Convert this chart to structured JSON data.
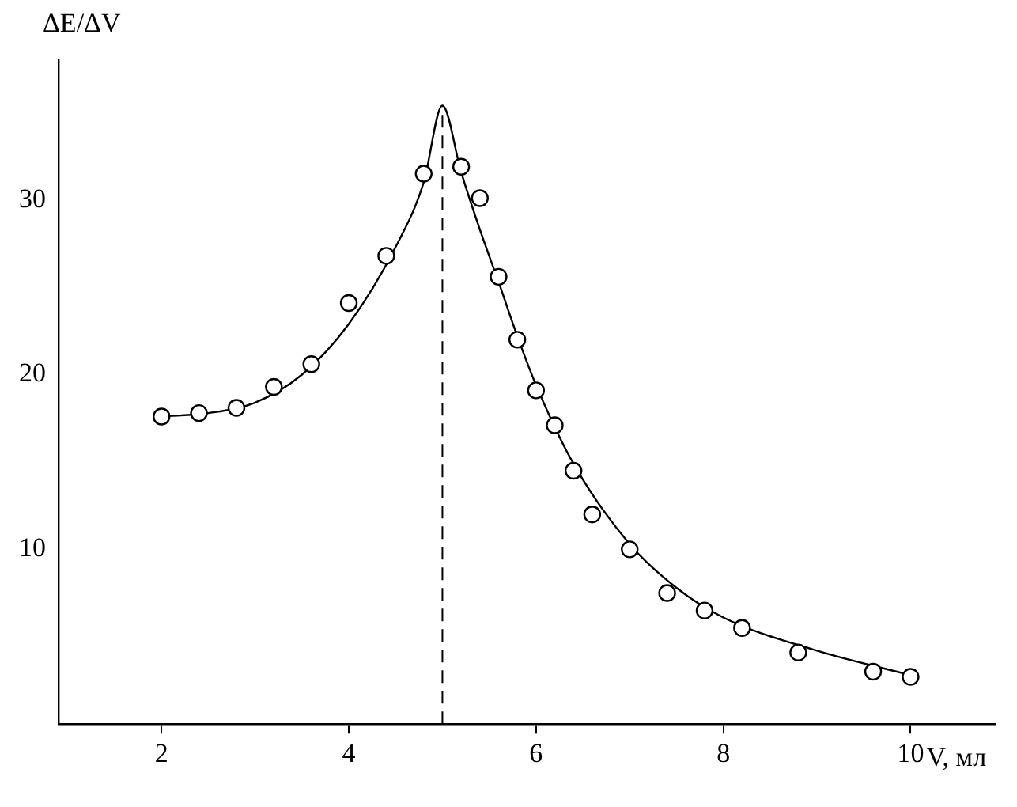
{
  "chart_data": {
    "type": "scatter",
    "xlabel": "V, мл",
    "ylabel": "ΔE/ΔV",
    "xlim": [
      0.9,
      10.9
    ],
    "ylim": [
      0,
      38
    ],
    "xticks": [
      2,
      4,
      6,
      8,
      10
    ],
    "yticks": [
      10,
      20,
      30
    ],
    "grid": false,
    "legend": false,
    "marker": "circle",
    "x": [
      2,
      2.4,
      2.8,
      3.2,
      3.6,
      4,
      4.4,
      4.8,
      5.2,
      5.4,
      5.6,
      5.8,
      6,
      6.2,
      6.4,
      6.6,
      7,
      7.4,
      7.8,
      8.2,
      8.8,
      9.6,
      10
    ],
    "series": [
      {
        "color": "#000000",
        "values": [
          17.6,
          17.8,
          18.1,
          19.3,
          20.6,
          24.1,
          26.8,
          31.5,
          31.9,
          30.1,
          25.6,
          22.0,
          19.1,
          17.1,
          14.5,
          12.0,
          10.0,
          7.5,
          6.5,
          5.5,
          4.1,
          3.0,
          2.7
        ]
      },
      {
        "type": "line",
        "marker": "none",
        "line_style": "solid",
        "color": "#000000",
        "x": [
          2,
          2.5,
          3,
          3.5,
          4,
          4.5,
          4.8,
          5,
          5.2,
          5.4,
          5.6,
          5.8,
          6,
          6.4,
          7,
          7.5,
          8,
          9,
          10
        ],
        "values": [
          17.6,
          17.8,
          18.4,
          20.0,
          22.9,
          27.3,
          31.0,
          35.4,
          31.6,
          28.3,
          25.3,
          22.2,
          19.4,
          14.9,
          10.3,
          7.8,
          6.1,
          4.2,
          2.8
        ]
      }
    ],
    "ref_lines": [
      {
        "axis": "x",
        "value": 5,
        "line_style": "dashed",
        "color": "#000000"
      }
    ]
  }
}
